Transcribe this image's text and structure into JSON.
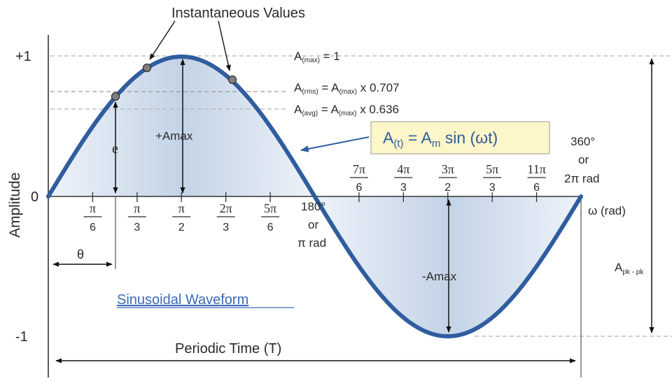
{
  "diagram": {
    "top_label": "Instantaneous Values",
    "y_axis_label": "Amplitude",
    "y_ticks": {
      "plus_one": "+1",
      "zero": "0",
      "minus_one": "-1"
    },
    "x_axis_label": "ω (rad)",
    "lines": {
      "max": {
        "base": "A",
        "sub": "(max)",
        "rest": " = 1"
      },
      "rms": {
        "base": "A",
        "sub": "(rms)",
        "eq": " = A",
        "sub2": "(max)",
        "rest": " x 0.707"
      },
      "avg": {
        "base": "A",
        "sub": "(avg)",
        "eq": " = A",
        "sub2": "(max)",
        "rest": " x 0.636"
      }
    },
    "formula": {
      "a": "A",
      "sub_t": "(t)",
      "eq": " = A",
      "sub_m": "m",
      "rest": " sin (ωt)"
    },
    "pos_amplitude_label": "+Amax",
    "neg_amplitude_label": "-Amax",
    "instant_label": "e",
    "theta_label": "θ",
    "fractions_below": [
      {
        "num": "π",
        "den": "6"
      },
      {
        "num": "π",
        "den": "3"
      },
      {
        "num": "π",
        "den": "2"
      },
      {
        "num": "2π",
        "den": "3"
      },
      {
        "num": "5π",
        "den": "6"
      }
    ],
    "fractions_above": [
      {
        "num": "7π",
        "den": "6"
      },
      {
        "num": "4π",
        "den": "3"
      },
      {
        "num": "3π",
        "den": "2"
      },
      {
        "num": "5π",
        "den": "3"
      },
      {
        "num": "11π",
        "den": "6"
      }
    ],
    "deg180": {
      "l1": "180°",
      "l2": "or",
      "l3": "π rad"
    },
    "deg360": {
      "l1": "360°",
      "l2": "or",
      "l3": "2π rad"
    },
    "waveform_title": "Sinusoidal Waveform",
    "peak_to_peak": {
      "base": "A",
      "sub": "pk - pk"
    },
    "period_label": "Periodic Time (T)",
    "colors": {
      "wave": "#2f5d9e",
      "fill_light": "#eef3f9",
      "fill_dark": "#c3d3e6",
      "formula_bg": "#fdf6c8",
      "title_link": "#3a6bb5"
    }
  }
}
